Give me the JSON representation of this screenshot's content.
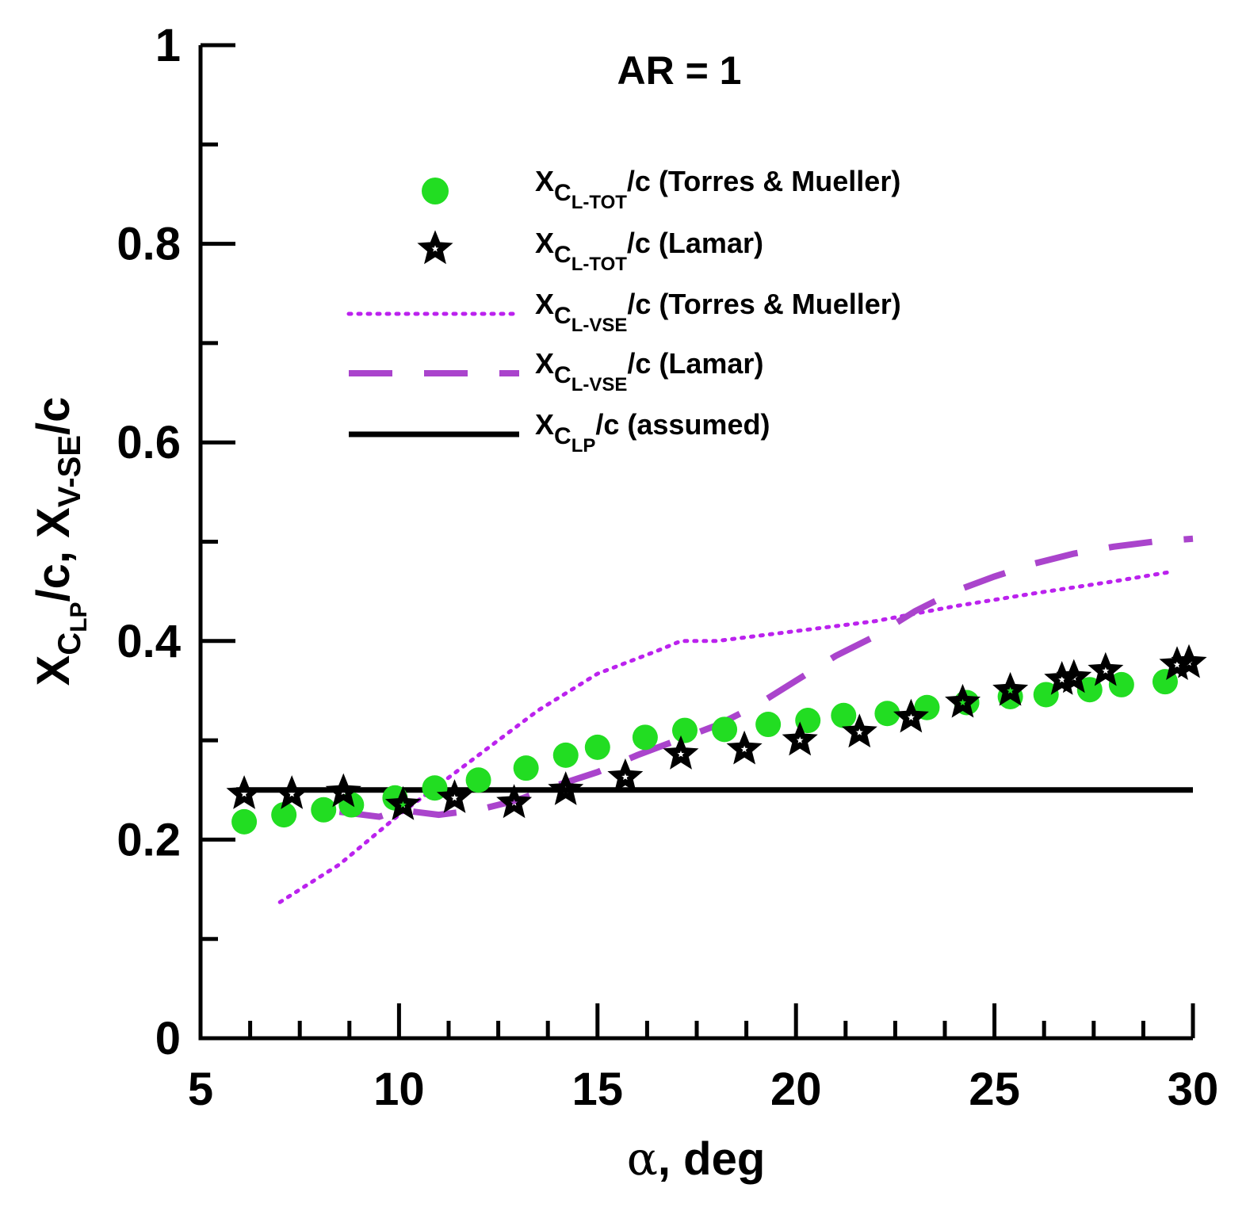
{
  "chart_data": {
    "type": "scatter",
    "title": "AR = 1",
    "xlabel": {
      "symbol": "α",
      "rest": ", deg"
    },
    "ylabel": {
      "x1": "X",
      "sub1": "C",
      "subsub1": "LP",
      "mid": "/c, X",
      "sub2": "V-SE",
      "end": "/c"
    },
    "xlim": [
      5,
      30
    ],
    "ylim": [
      0,
      1
    ],
    "xticks": [
      "5",
      "10",
      "15",
      "20",
      "25",
      "30"
    ],
    "yticks": [
      "0",
      "0.2",
      "0.4",
      "0.6",
      "0.8",
      "1"
    ],
    "colors": {
      "green": "#22dd22",
      "purple_dotted": "#bb22ee",
      "purple_dashed": "#aa44cc",
      "black": "#000000"
    },
    "series": [
      {
        "name": "XCL-TOT/c (Torres & Mueller)",
        "style": "markers-circle",
        "legend": {
          "x": "X",
          "sub": "C",
          "subsub": "L-TOT",
          "rest": "/c (Torres & Mueller)"
        },
        "x": [
          6.1,
          7.1,
          8.1,
          8.8,
          9.9,
          10.9,
          12.0,
          13.2,
          14.2,
          15.0,
          16.2,
          17.2,
          18.2,
          19.3,
          20.3,
          21.2,
          22.3,
          23.3,
          24.3,
          25.4,
          26.3,
          27.4,
          28.2,
          29.3
        ],
        "y": [
          0.218,
          0.225,
          0.23,
          0.235,
          0.242,
          0.252,
          0.26,
          0.272,
          0.285,
          0.293,
          0.303,
          0.31,
          0.311,
          0.316,
          0.32,
          0.325,
          0.327,
          0.333,
          0.338,
          0.344,
          0.346,
          0.351,
          0.356,
          0.359
        ]
      },
      {
        "name": "XCL-TOT/c (Lamar)",
        "style": "markers-star",
        "legend": {
          "x": "X",
          "sub": "C",
          "subsub": "L-TOT",
          "rest": "/c (Lamar)"
        },
        "x": [
          6.1,
          7.3,
          8.6,
          10.1,
          11.4,
          12.9,
          14.2,
          15.7,
          17.1,
          18.7,
          20.1,
          21.6,
          22.9,
          24.2,
          25.4,
          26.7,
          27.0,
          27.8,
          29.6,
          29.9
        ],
        "y": [
          0.246,
          0.246,
          0.248,
          0.235,
          0.242,
          0.237,
          0.25,
          0.263,
          0.286,
          0.291,
          0.3,
          0.308,
          0.323,
          0.338,
          0.35,
          0.361,
          0.363,
          0.37,
          0.376,
          0.378
        ]
      },
      {
        "name": "XCL-VSE/c (Torres & Mueller)",
        "style": "dotted",
        "legend": {
          "x": "X",
          "sub": "C",
          "subsub": "L-VSE",
          "rest": "/c (Torres & Mueller)"
        },
        "x": [
          7.0,
          8.5,
          10.0,
          12.0,
          13.5,
          15.0,
          16.5,
          17.1,
          18.0,
          20.0,
          22.0,
          24.0,
          26.0,
          28.0,
          29.5
        ],
        "y": [
          0.137,
          0.175,
          0.225,
          0.285,
          0.33,
          0.367,
          0.39,
          0.4,
          0.4,
          0.41,
          0.42,
          0.435,
          0.448,
          0.46,
          0.47
        ]
      },
      {
        "name": "XCL-VSE/c (Lamar)",
        "style": "dashed",
        "legend": {
          "x": "X",
          "sub": "C",
          "subsub": "L-VSE",
          "rest": "/c (Lamar)"
        },
        "x": [
          8.5,
          9.5,
          10.0,
          11.0,
          12.0,
          13.0,
          14.0,
          15.0,
          16.0,
          17.0,
          18.0,
          19.0,
          20.0,
          21.0,
          22.0,
          23.0,
          24.0,
          25.0,
          26.0,
          27.0,
          28.0,
          29.0,
          30.0
        ],
        "y": [
          0.228,
          0.223,
          0.23,
          0.225,
          0.23,
          0.24,
          0.255,
          0.268,
          0.285,
          0.3,
          0.315,
          0.335,
          0.36,
          0.385,
          0.405,
          0.43,
          0.45,
          0.465,
          0.478,
          0.488,
          0.495,
          0.5,
          0.503
        ]
      },
      {
        "name": "XCLP/c (assumed)",
        "style": "solid",
        "legend": {
          "x": "X",
          "sub": "C",
          "subsub": "LP",
          "rest": "/c (assumed)"
        },
        "x": [
          5.9,
          30.0
        ],
        "y": [
          0.25,
          0.25
        ]
      }
    ]
  }
}
